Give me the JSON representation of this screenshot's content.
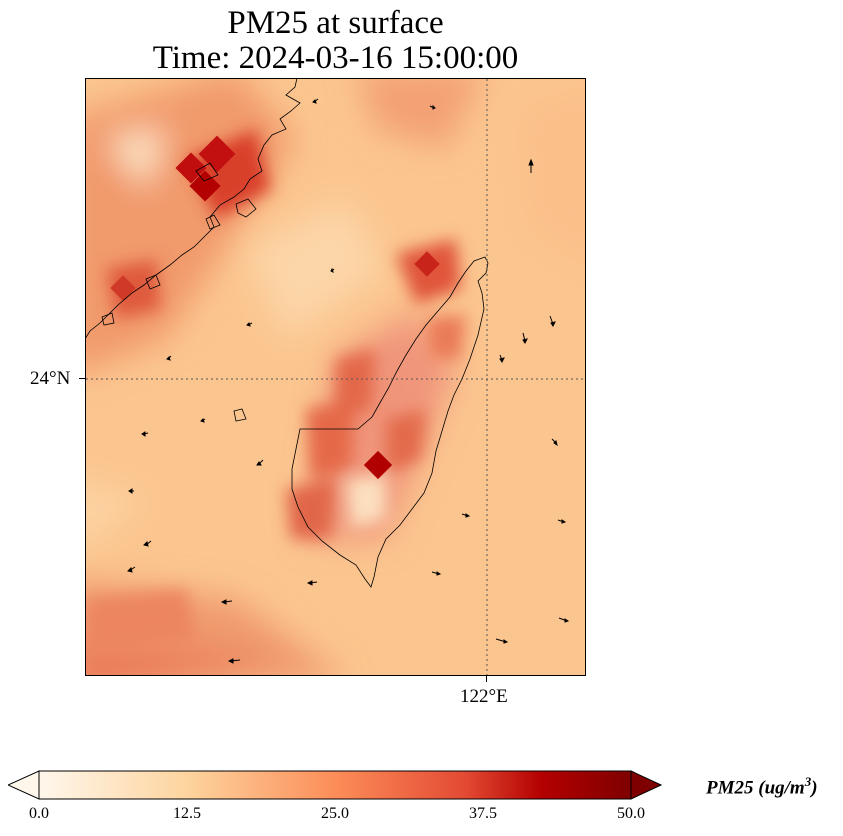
{
  "title": {
    "line1": "PM25 at surface",
    "line2": "Time: 2024-03-16 15:00:00"
  },
  "axes": {
    "lat_label": "24°N",
    "lon_label": "122°E",
    "gridlines": "dotted"
  },
  "colorbar": {
    "label_main": "PM25 (ug/m",
    "label_sup": "3",
    "label_close": ")",
    "ticks": [
      "0.0",
      "12.5",
      "25.0",
      "37.5",
      "50.0"
    ],
    "range": [
      0,
      50
    ],
    "colormap": "OrRd",
    "colors": [
      "#fff7ec",
      "#fdd49e",
      "#fc8d59",
      "#d7301f",
      "#b30000",
      "#7f0000"
    ],
    "extend": "both"
  },
  "map": {
    "variable": "PM25",
    "overlay": "wind vectors",
    "background_color": "#fbc58f"
  }
}
